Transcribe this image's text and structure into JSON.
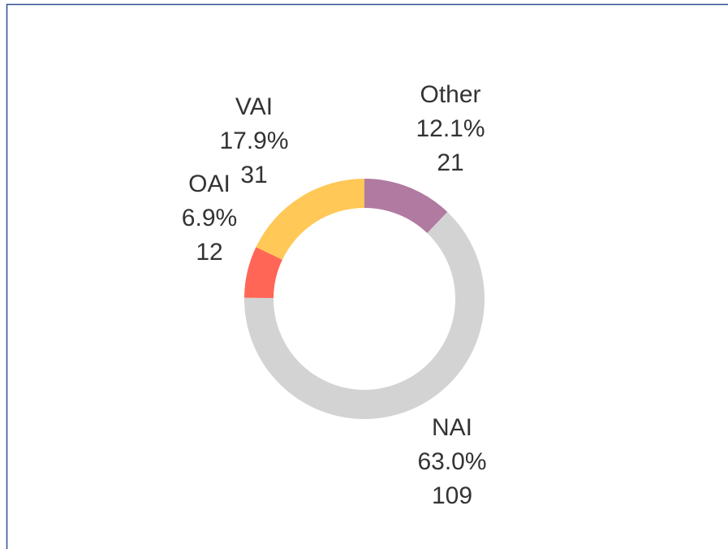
{
  "chart_data": {
    "type": "donut",
    "categories": [
      "Other",
      "NAI",
      "OAI",
      "VAI"
    ],
    "values": [
      21,
      109,
      12,
      31
    ],
    "percent_labels": [
      "12.1%",
      "63.0%",
      "6.9%",
      "17.9%"
    ],
    "colors": [
      "#b07aa1",
      "#d3d3d3",
      "#ff6655",
      "#ffc857"
    ]
  }
}
